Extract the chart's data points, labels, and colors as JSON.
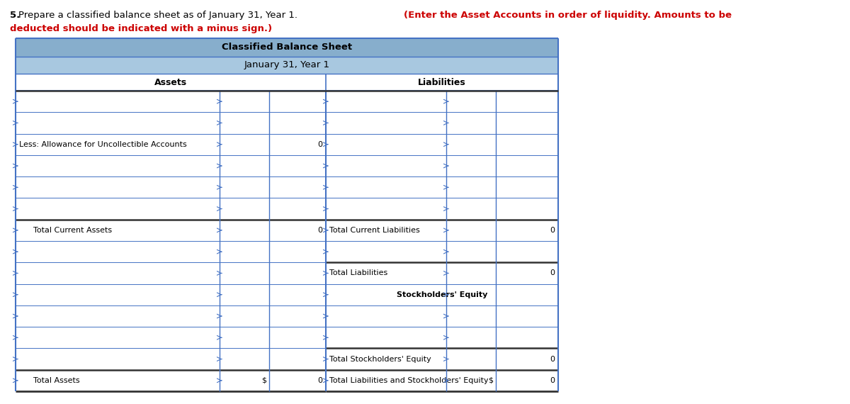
{
  "title1": "Classified Balance Sheet",
  "title2": "January 31, Year 1",
  "header_left": "Assets",
  "header_right": "Liabilities",
  "header_bg": "#87aecc",
  "header_bg2": "#a8c8e0",
  "border_blue": "#4472c4",
  "border_dark": "#333333",
  "row_colors": [
    "#ffffff",
    "#dce8f4"
  ],
  "text_color": "#000000",
  "red_color": "#cc0000",
  "instr_plain": "5. Prepare a classified balance sheet as of January 31, Year 1. ",
  "instr_bold": "(Enter the Asset Accounts in order of liquidity. Amounts to be",
  "instr_bold2": "deducted should be indicated with a minus sign.)",
  "left_rows": [
    {
      "label": "",
      "indent": false,
      "c1": "",
      "c2": "",
      "total": false,
      "thick_top": false
    },
    {
      "label": "",
      "indent": false,
      "c1": "",
      "c2": "",
      "total": false,
      "thick_top": false
    },
    {
      "label": "Less: Allowance for Uncollectible Accounts",
      "indent": false,
      "c1": "",
      "c2": "0",
      "total": false,
      "thick_top": false
    },
    {
      "label": "",
      "indent": false,
      "c1": "",
      "c2": "",
      "total": false,
      "thick_top": false
    },
    {
      "label": "",
      "indent": false,
      "c1": "",
      "c2": "",
      "total": false,
      "thick_top": false
    },
    {
      "label": "",
      "indent": false,
      "c1": "",
      "c2": "",
      "total": false,
      "thick_top": false
    },
    {
      "label": "Total Current Assets",
      "indent": true,
      "c1": "",
      "c2": "0",
      "total": true,
      "thick_top": true
    },
    {
      "label": "",
      "indent": false,
      "c1": "",
      "c2": "",
      "total": false,
      "thick_top": false
    },
    {
      "label": "",
      "indent": false,
      "c1": "",
      "c2": "",
      "total": false,
      "thick_top": false
    },
    {
      "label": "",
      "indent": false,
      "c1": "",
      "c2": "",
      "total": false,
      "thick_top": false
    },
    {
      "label": "",
      "indent": false,
      "c1": "",
      "c2": "",
      "total": false,
      "thick_top": false
    },
    {
      "label": "",
      "indent": false,
      "c1": "",
      "c2": "",
      "total": false,
      "thick_top": false
    },
    {
      "label": "",
      "indent": false,
      "c1": "",
      "c2": "",
      "total": false,
      "thick_top": false
    },
    {
      "label": "Total Assets",
      "indent": true,
      "c1": "$",
      "c2": "0",
      "total": true,
      "thick_top": true
    }
  ],
  "right_rows": [
    {
      "label": "",
      "center": false,
      "bold": false,
      "c1": "",
      "c2": "",
      "total": false,
      "thick_top": false
    },
    {
      "label": "",
      "center": false,
      "bold": false,
      "c1": "",
      "c2": "",
      "total": false,
      "thick_top": false
    },
    {
      "label": "",
      "center": false,
      "bold": false,
      "c1": "",
      "c2": "",
      "total": false,
      "thick_top": false
    },
    {
      "label": "",
      "center": false,
      "bold": false,
      "c1": "",
      "c2": "",
      "total": false,
      "thick_top": false
    },
    {
      "label": "",
      "center": false,
      "bold": false,
      "c1": "",
      "c2": "",
      "total": false,
      "thick_top": false
    },
    {
      "label": "",
      "center": false,
      "bold": false,
      "c1": "",
      "c2": "",
      "total": false,
      "thick_top": false
    },
    {
      "label": "Total Current Liabilities",
      "center": false,
      "bold": false,
      "c1": "",
      "c2": "0",
      "total": true,
      "thick_top": true
    },
    {
      "label": "",
      "center": false,
      "bold": false,
      "c1": "",
      "c2": "",
      "total": false,
      "thick_top": false
    },
    {
      "label": "Total Liabilities",
      "center": false,
      "bold": false,
      "c1": "",
      "c2": "0",
      "total": false,
      "thick_top": true
    },
    {
      "label": "Stockholders' Equity",
      "center": true,
      "bold": true,
      "c1": "",
      "c2": "",
      "total": false,
      "thick_top": false
    },
    {
      "label": "",
      "center": false,
      "bold": false,
      "c1": "",
      "c2": "",
      "total": false,
      "thick_top": false
    },
    {
      "label": "",
      "center": false,
      "bold": false,
      "c1": "",
      "c2": "",
      "total": false,
      "thick_top": false
    },
    {
      "label": "Total Stockholders' Equity",
      "center": false,
      "bold": false,
      "c1": "",
      "c2": "0",
      "total": false,
      "thick_top": true
    },
    {
      "label": "Total Liabilities and Stockholders' Equity",
      "center": false,
      "bold": false,
      "c1": "$",
      "c2": "0",
      "total": true,
      "thick_top": true
    }
  ]
}
